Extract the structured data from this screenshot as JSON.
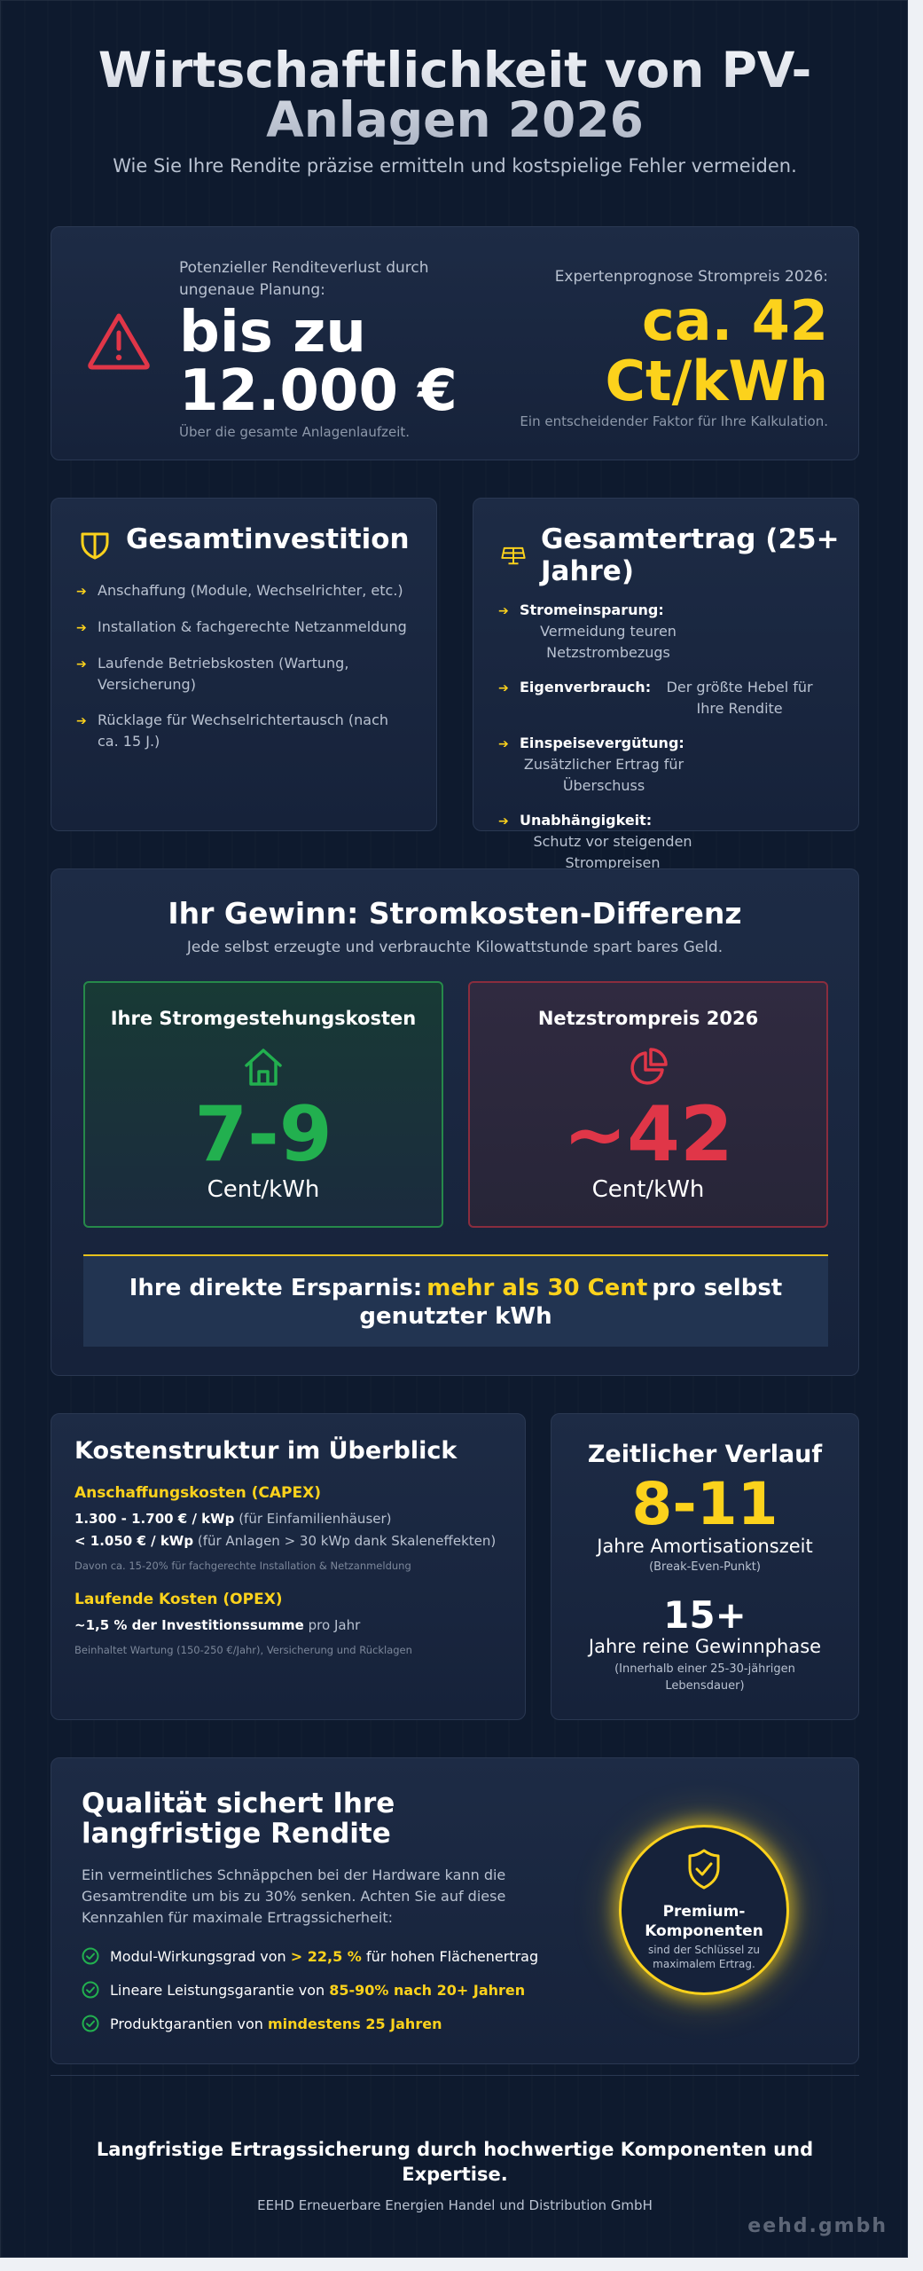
{
  "header": {
    "title": "Wirtschaftlichkeit von PV-Anlagen 2026",
    "subtitle": "Wie Sie Ihre Rendite präzise ermitteln und kostspielige Fehler vermeiden."
  },
  "hero": {
    "loss_caption": "Potenzieller Renditeverlust durch ungenaue Planung:",
    "loss_value": "bis zu 12.000 €",
    "loss_note": "Über die gesamte Anlagenlaufzeit.",
    "forecast_caption": "Expertenprognose Strompreis 2026:",
    "forecast_value": "ca. 42 Ct/kWh",
    "forecast_note": "Ein entscheidender Faktor für Ihre Kalkulation."
  },
  "investment": {
    "title": "Gesamtinvestition",
    "items": [
      "Anschaffung (Module, Wechselrichter, etc.)",
      "Installation & fachgerechte Netzanmeldung",
      "Laufende Betriebskosten (Wartung, Versicherung)",
      "Rücklage für Wechselrichtertausch (nach ca. 15 J.)"
    ]
  },
  "returns": {
    "title": "Gesamtertrag (25+ Jahre)",
    "items": [
      {
        "term": "Stromeinsparung:",
        "text": "Vermeidung teuren Netzstrombezugs"
      },
      {
        "term": "Eigenverbrauch:",
        "text": "Der größte Hebel für Ihre Rendite"
      },
      {
        "term": "Einspeisevergütung:",
        "text": "Zusätzlicher Ertrag für Überschuss"
      },
      {
        "term": "Unabhängigkeit:",
        "text": "Schutz vor steigenden Strompreisen"
      }
    ]
  },
  "gain": {
    "title": "Ihr Gewinn: Stromkosten-Differenz",
    "subtitle": "Jede selbst erzeugte und verbrauchte Kilowattstunde spart bares Geld.",
    "own": {
      "title": "Ihre Stromgestehungskosten",
      "value": "7-9",
      "unit": "Cent/kWh"
    },
    "grid": {
      "title": "Netzstrompreis 2026",
      "value": "~42",
      "unit": "Cent/kWh"
    },
    "savings_pre": "Ihre direkte Ersparnis:",
    "savings_highlight": "mehr als 30 Cent",
    "savings_post": "pro selbst genutzter kWh"
  },
  "costs": {
    "title": "Kostenstruktur im Überblick",
    "capex_title": "Anschaffungskosten (CAPEX)",
    "capex_1_bold": "1.300 - 1.700 € / kWp",
    "capex_1_rest": "(für Einfamilienhäuser)",
    "capex_2_bold": "< 1.050 € / kWp",
    "capex_2_rest": "(für Anlagen > 30 kWp dank Skaleneffekten)",
    "capex_note": "Davon ca. 15-20% für fachgerechte Installation & Netzanmeldung",
    "opex_title": "Laufende Kosten (OPEX)",
    "opex_bold": "~1,5 % der Investitionssumme",
    "opex_rest": "pro Jahr",
    "opex_note": "Beinhaltet Wartung (150-250 €/Jahr), Versicherung und Rücklagen"
  },
  "timeline": {
    "title": "Zeitlicher Verlauf",
    "amort_value": "8-11",
    "amort_label": "Jahre Amortisationszeit",
    "amort_sub": "(Break-Even-Punkt)",
    "profit_value": "15+",
    "profit_label": "Jahre reine Gewinnphase",
    "profit_sub": "(Innerhalb einer 25-30-jährigen Lebensdauer)"
  },
  "quality": {
    "title": "Qualität sichert Ihre langfristige Rendite",
    "intro": "Ein vermeintliches Schnäppchen bei der Hardware kann die Gesamtrendite um bis zu 30% senken. Achten Sie auf diese Kennzahlen für maximale Ertragssicherheit:",
    "items": [
      {
        "pre": "Modul-Wirkungsgrad von",
        "hl": "> 22,5 %",
        "post": "für hohen Flächenertrag"
      },
      {
        "pre": "Lineare Leistungsgarantie von",
        "hl": "85-90% nach 20+ Jahren",
        "post": ""
      },
      {
        "pre": "Produktgarantien von",
        "hl": "mindestens 25 Jahren",
        "post": ""
      }
    ],
    "seal_title": "Premium-Komponenten",
    "seal_sub": "sind der Schlüssel zu maximalem Ertrag."
  },
  "footer": {
    "tagline": "Langfristige Ertragssicherung durch hochwertige Komponenten und Expertise.",
    "company": "EEHD Erneuerbare Energien Handel und Distribution GmbH",
    "brand": "eehd.gmbh"
  },
  "colors": {
    "accent": "#fcd21c",
    "positive": "#22b04f",
    "negative": "#e03648",
    "background": "#0e1a2e"
  }
}
